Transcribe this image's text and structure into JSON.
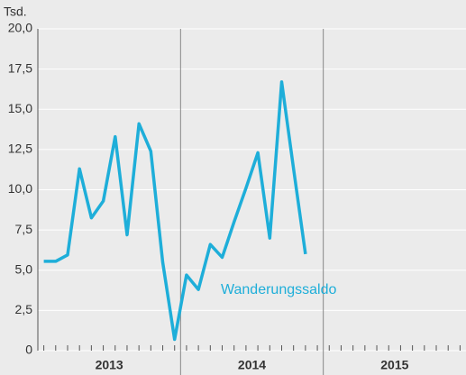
{
  "chart_data": {
    "type": "line",
    "y_label": "Tsd.",
    "categories": [
      null,
      null,
      null,
      null,
      null,
      null,
      null,
      null,
      null,
      null,
      null,
      null,
      null,
      null,
      null,
      null,
      null,
      null,
      null,
      null,
      null,
      null,
      null,
      null,
      null,
      null,
      null,
      null,
      null,
      null,
      null,
      null,
      null,
      null,
      null,
      null
    ],
    "groups": [
      "2013",
      "2014",
      "2015"
    ],
    "series": [
      {
        "name": "Wanderungssaldo",
        "color": "#1eaed9",
        "values": [
          5.55,
          5.55,
          5.95,
          11.3,
          8.25,
          9.3,
          13.3,
          7.2,
          14.1,
          12.4,
          5.5,
          0.7,
          4.7,
          3.8,
          6.6,
          5.8,
          8.0,
          10.1,
          12.3,
          7.0,
          16.7,
          11.3,
          6.0,
          null,
          null,
          null,
          null,
          null,
          null,
          null,
          null,
          null,
          null,
          null,
          null,
          null
        ]
      }
    ],
    "ylim": [
      0,
      20
    ],
    "yticks": [
      0,
      {
        "value": 2.5,
        "label": "2,5"
      },
      {
        "value": 5,
        "label": "5,0"
      },
      {
        "value": 7.5,
        "label": "7,5"
      },
      {
        "value": 10,
        "label": "10,0"
      },
      {
        "value": 12.5,
        "label": "12,5"
      },
      {
        "value": 15,
        "label": "15,0"
      },
      {
        "value": 17.5,
        "label": "17,5"
      },
      {
        "value": 20,
        "label": "20,0"
      }
    ],
    "grid": true
  }
}
